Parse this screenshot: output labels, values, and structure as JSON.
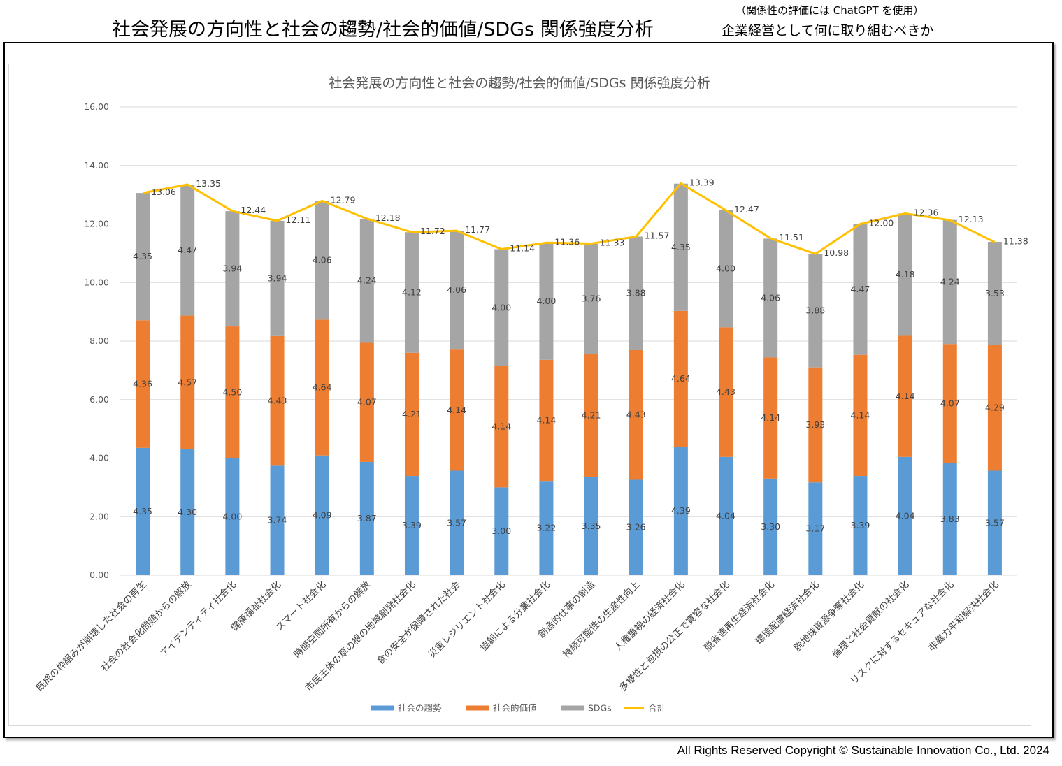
{
  "header": {
    "title": "社会発展の方向性と社会の趨勢/社会的価値/SDGs 関係強度分析",
    "note": "（関係性の評価には ChatGPT を使用）",
    "subtitle": "企業経営として何に取り組むべきか"
  },
  "footer": {
    "copyright": "All Rights Reserved Copyright © Sustainable Innovation Co., Ltd. 2024"
  },
  "chart_data": {
    "type": "bar",
    "stacked": true,
    "title": "社会発展の方向性と社会の趨勢/社会的価値/SDGs 関係強度分析",
    "xlabel": "",
    "ylabel": "",
    "ylim": [
      0,
      16
    ],
    "yticks": [
      "0.00",
      "2.00",
      "4.00",
      "6.00",
      "8.00",
      "10.00",
      "12.00",
      "14.00",
      "16.00"
    ],
    "grid": true,
    "legend_position": "bottom",
    "categories": [
      "既成の枠組みが崩壊した社会の再生",
      "社会の社会化問題からの解放",
      "アイデンティティ社会化",
      "健康福祉社会化",
      "スマート社会化",
      "時間空間所有からの解放",
      "市民主体の草の根の地域創発社会化",
      "食の安全が保障された社会",
      "災害レジリエント社会化",
      "協創による分業社会化",
      "創造的仕事の創造",
      "持続可能性の生産性向上",
      "人権重視の経済社会化",
      "多様性と包摂の公正で寛容な社会化",
      "脱省適再生経済社会化",
      "環境配慮経済社会化",
      "脱地球資源争奪社会化",
      "倫理と社会貢献の社会化",
      "リスクに対するセキュアな社会化",
      "非暴力平和解決社会化"
    ],
    "series": [
      {
        "name": "社会の趨勢",
        "color": "#5b9bd5",
        "values": [
          4.35,
          4.3,
          4.0,
          3.74,
          4.09,
          3.87,
          3.39,
          3.57,
          3.0,
          3.22,
          3.35,
          3.26,
          4.39,
          4.04,
          3.3,
          3.17,
          3.39,
          4.04,
          3.83,
          3.57
        ]
      },
      {
        "name": "社会的価値",
        "color": "#ed7d31",
        "values": [
          4.36,
          4.57,
          4.5,
          4.43,
          4.64,
          4.07,
          4.21,
          4.14,
          4.14,
          4.14,
          4.21,
          4.43,
          4.64,
          4.43,
          4.14,
          3.93,
          4.14,
          4.14,
          4.07,
          4.29
        ]
      },
      {
        "name": "SDGs",
        "color": "#a5a5a5",
        "values": [
          4.35,
          4.47,
          3.94,
          3.94,
          4.06,
          4.24,
          4.12,
          4.06,
          4.0,
          4.0,
          3.76,
          3.88,
          4.35,
          4.0,
          4.06,
          3.88,
          4.47,
          4.18,
          4.24,
          3.53
        ]
      }
    ],
    "total_line": {
      "name": "合計",
      "color": "#ffc000",
      "values": [
        13.06,
        13.35,
        12.44,
        12.11,
        12.79,
        12.18,
        11.72,
        11.77,
        11.14,
        11.36,
        11.33,
        11.57,
        13.39,
        12.47,
        11.51,
        10.98,
        12.0,
        12.36,
        12.13,
        11.38
      ]
    }
  }
}
